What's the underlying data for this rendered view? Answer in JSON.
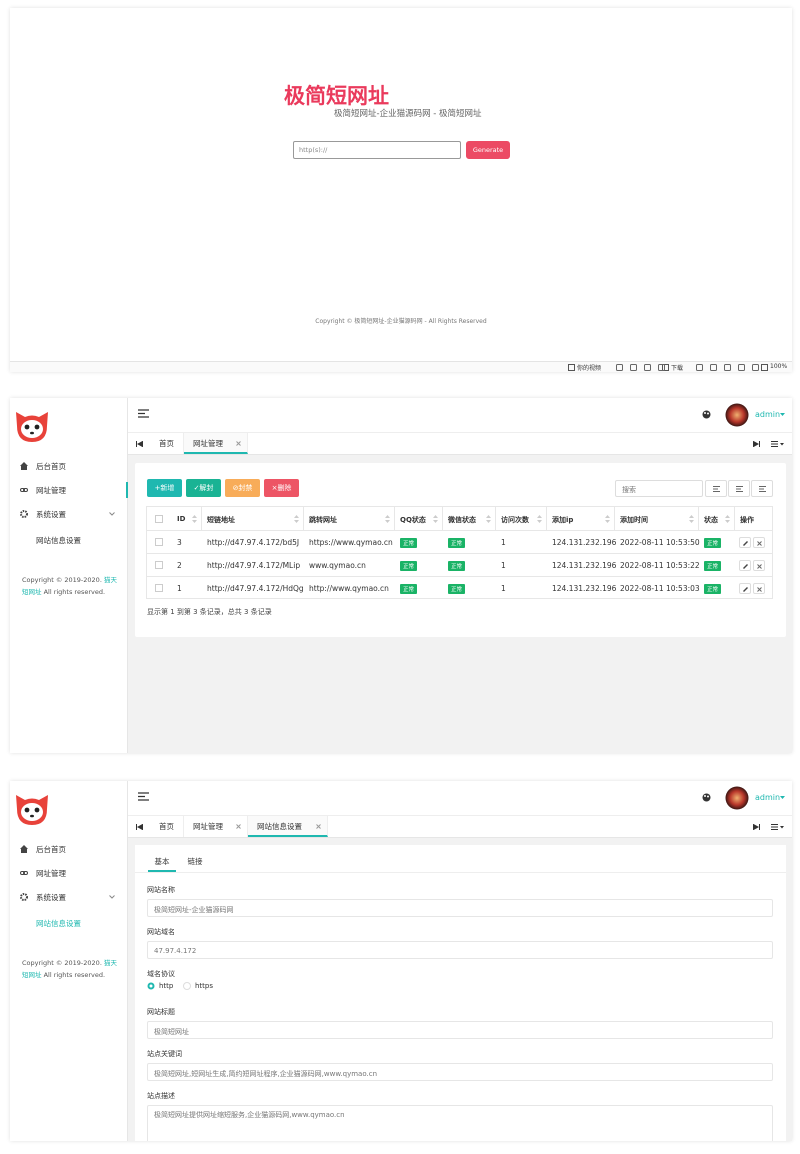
{
  "landing": {
    "title": "极简短网址",
    "subtitle": "极简短网址-企业猫源码网 - 极简短网址",
    "input_placeholder": "http(s)://",
    "button": "Generate",
    "copyright": "Copyright © 极简短网址-企业猫源码网 - All Rights Reserved",
    "status_bar": [
      "你的视频",
      "下载",
      "100%"
    ]
  },
  "admin_list": {
    "sidebar": {
      "menu": [
        "后台首页",
        "网址管理",
        "系统设置",
        "网站信息设置"
      ],
      "copyright_prefix": "Copyright © 2019-2020.",
      "copyright_link": "猫天短网址",
      "copyright_suffix": "All rights reserved."
    },
    "user": "admin",
    "tabs": [
      "首页",
      "网址管理"
    ],
    "buttons": [
      "+新增",
      "✓解封",
      "⊘封禁",
      "×删除"
    ],
    "search_placeholder": "搜索",
    "table": {
      "columns": [
        "ID",
        "短链地址",
        "跳转网址",
        "QQ状态",
        "微信状态",
        "访问次数",
        "添加ip",
        "添加时间",
        "状态",
        "操作"
      ],
      "rows": [
        [
          3,
          "http://d47.97.4.172/bd5J",
          "https://www.qymao.cn",
          "正常",
          "正常",
          1,
          "124.131.232.196",
          "2022-08-11 10:53:50",
          "正常"
        ],
        [
          2,
          "http://d47.97.4.172/MLip",
          "www.qymao.cn",
          "正常",
          "正常",
          1,
          "124.131.232.196",
          "2022-08-11 10:53:22",
          "正常"
        ],
        [
          1,
          "http://d47.97.4.172/HdQg",
          "http://www.qymao.cn",
          "正常",
          "正常",
          1,
          "124.131.232.196",
          "2022-08-11 10:53:03",
          "正常"
        ]
      ]
    },
    "pagination": "显示第 1 到第 3 条记录，总共 3 条记录"
  },
  "admin_settings": {
    "sidebar": {
      "menu": [
        "后台首页",
        "网址管理",
        "系统设置",
        "网站信息设置"
      ],
      "copyright_prefix": "Copyright © 2019-2020.",
      "copyright_link": "猫天短网址",
      "copyright_suffix": "All rights reserved."
    },
    "user": "admin",
    "tabs": [
      "首页",
      "网址管理",
      "网站信息设置"
    ],
    "subtabs": [
      "基本",
      "链接"
    ],
    "fields": [
      {
        "label": "网站名称",
        "value": "极简短网址-企业猫源码网"
      },
      {
        "label": "网站域名",
        "value": "47.97.4.172"
      },
      {
        "label": "域名协议",
        "options": [
          "http",
          "https"
        ]
      },
      {
        "label": "网站标题",
        "value": "极简短网址"
      },
      {
        "label": "站点关键词",
        "value": "极简短网址,短网址生成,简约短网址程序,企业猫源码网,www.qymao.cn"
      },
      {
        "label": "站点描述",
        "value": "极简短网址提供网址缩短服务,企业猫源码网,www.qymao.cn"
      }
    ]
  }
}
